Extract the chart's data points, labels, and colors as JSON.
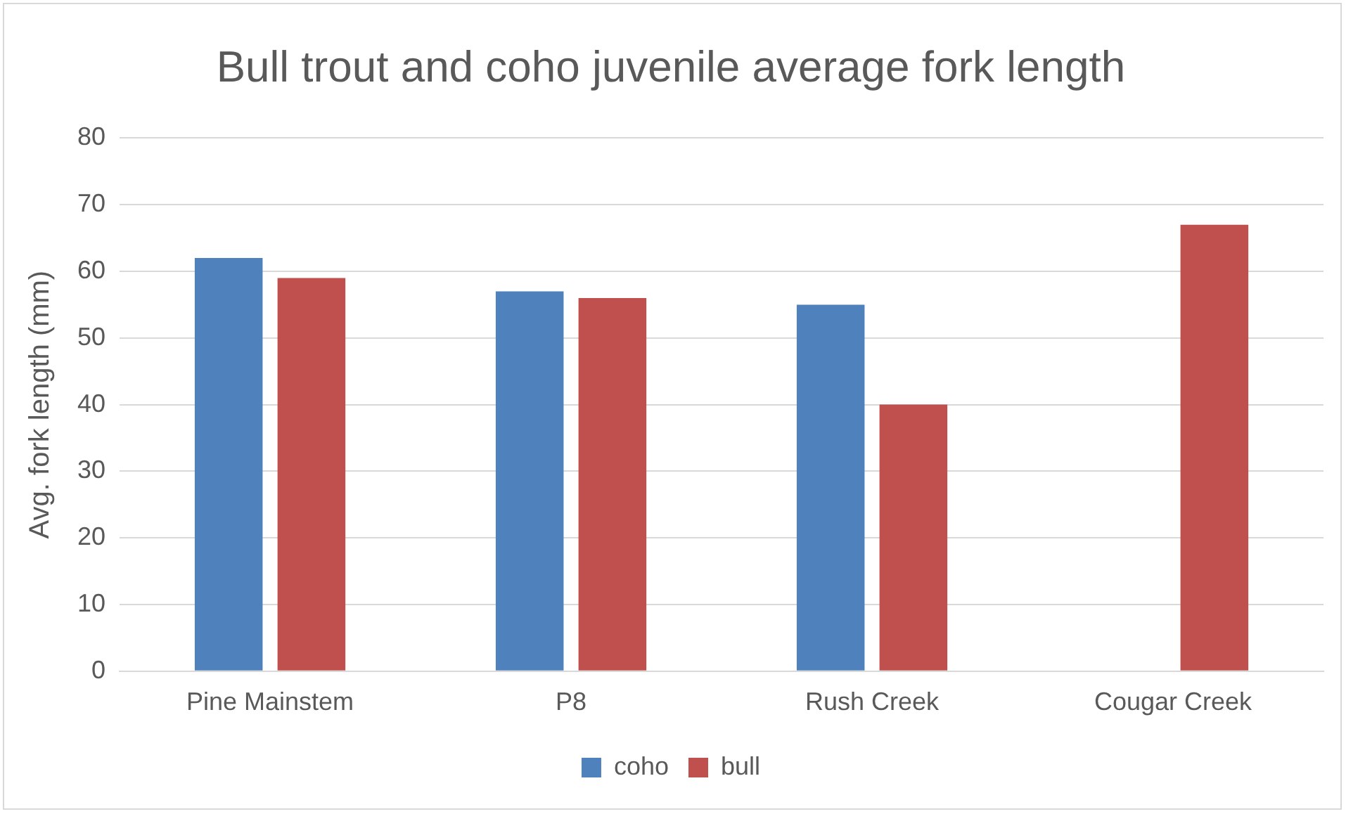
{
  "chart_data": {
    "type": "bar",
    "title": "Bull trout and coho juvenile average fork length",
    "ylabel": "Avg. fork length (mm)",
    "categories": [
      "Pine Mainstem",
      "P8",
      "Rush Creek",
      "Cougar Creek"
    ],
    "series": [
      {
        "name": "coho",
        "color": "#4f81bd",
        "values": [
          62,
          57,
          55,
          null
        ]
      },
      {
        "name": "bull",
        "color": "#c0504d",
        "values": [
          59,
          56,
          40,
          67
        ]
      }
    ],
    "ylim": [
      0,
      80
    ],
    "yticks": [
      0,
      10,
      20,
      30,
      40,
      50,
      60,
      70,
      80
    ],
    "grid": "y",
    "legend": "bottom"
  }
}
